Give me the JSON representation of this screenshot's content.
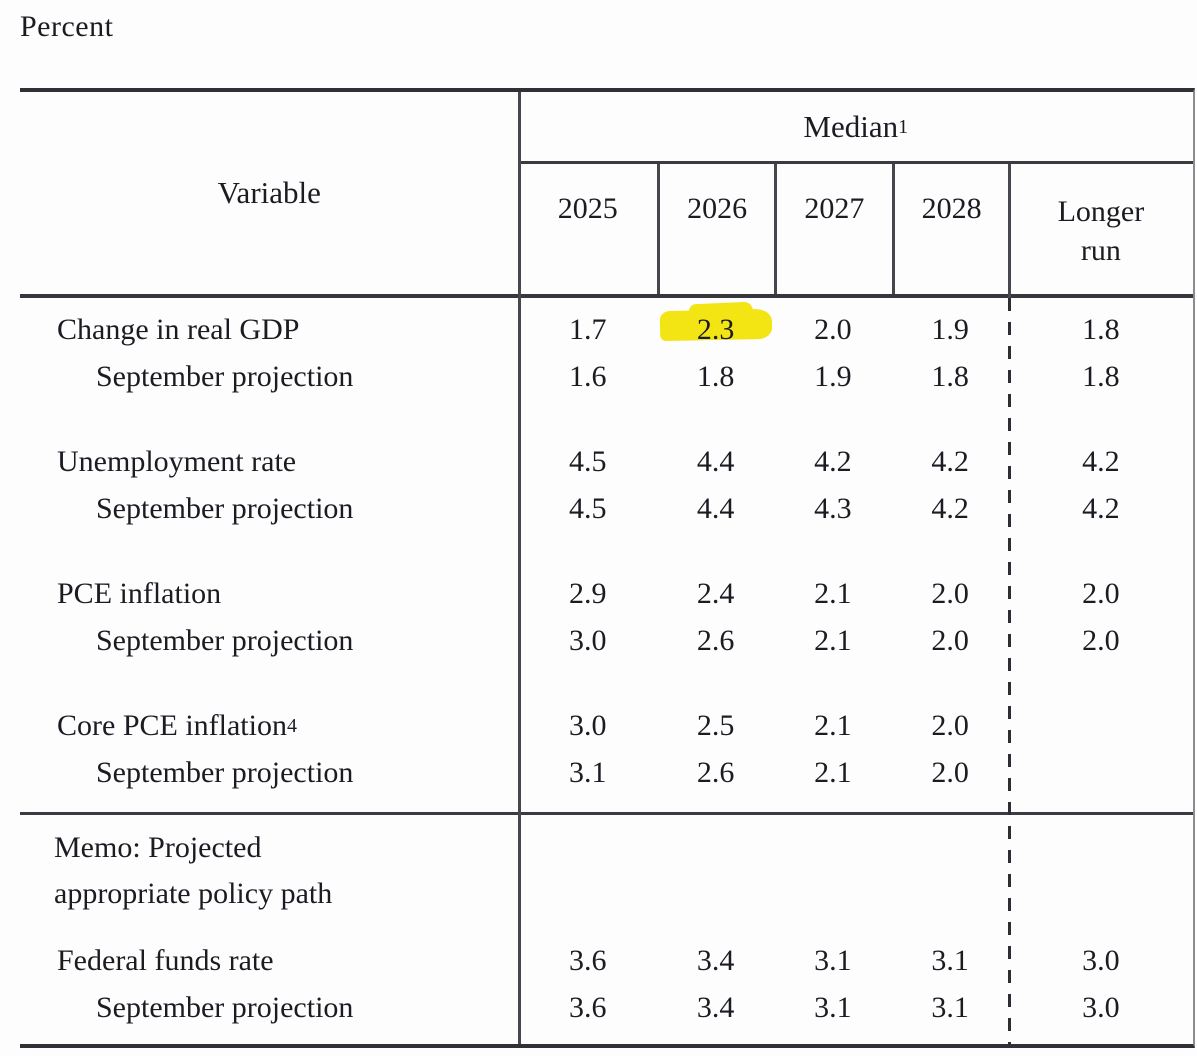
{
  "page": {
    "unit_label": "Percent"
  },
  "table": {
    "corner_header": "Variable",
    "group_header": {
      "text": "Median",
      "sup": "1"
    },
    "col_headers": [
      "2025",
      "2026",
      "2027",
      "2028",
      "Longer run"
    ],
    "rows": [
      {
        "label": "Change in real GDP",
        "values": [
          "1.7",
          "2.3",
          "2.0",
          "1.9",
          "1.8"
        ]
      },
      {
        "label": "September projection",
        "values": [
          "1.6",
          "1.8",
          "1.9",
          "1.8",
          "1.8"
        ]
      },
      {
        "label": "Unemployment rate",
        "values": [
          "4.5",
          "4.4",
          "4.2",
          "4.2",
          "4.2"
        ]
      },
      {
        "label": "September projection",
        "values": [
          "4.5",
          "4.4",
          "4.3",
          "4.2",
          "4.2"
        ]
      },
      {
        "label": "PCE inflation",
        "values": [
          "2.9",
          "2.4",
          "2.1",
          "2.0",
          "2.0"
        ]
      },
      {
        "label": "September projection",
        "values": [
          "3.0",
          "2.6",
          "2.1",
          "2.0",
          "2.0"
        ]
      },
      {
        "label": "Core PCE inflation",
        "sup": "4",
        "values": [
          "3.0",
          "2.5",
          "2.1",
          "2.0",
          ""
        ]
      },
      {
        "label": "September projection",
        "values": [
          "3.1",
          "2.6",
          "2.1",
          "2.0",
          ""
        ]
      },
      {
        "label": "Federal funds rate",
        "values": [
          "3.6",
          "3.4",
          "3.1",
          "3.1",
          "3.0"
        ]
      },
      {
        "label": "September projection",
        "values": [
          "3.6",
          "3.4",
          "3.1",
          "3.1",
          "3.0"
        ]
      }
    ],
    "memo": {
      "line1": "Memo: Projected",
      "line2": "appropriate policy path"
    },
    "highlighted_cell": {
      "row": "Change in real GDP",
      "column": "2026",
      "value": "2.3"
    }
  },
  "colors": {
    "highlight_yellow": "#f3e514",
    "rule_dark": "#37373d",
    "text_ink": "#1b1b22"
  }
}
